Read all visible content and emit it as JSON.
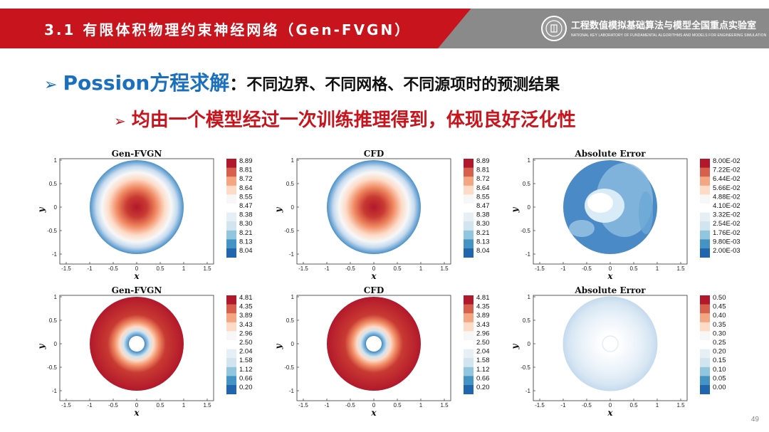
{
  "header": {
    "title": "3.1 有限体积物理约束神经网络（Gen-FVGN）",
    "lab_name_cn": "工程数值模拟基础算法与模型全国重点实验室",
    "lab_name_en": "NATIONAL KEY LABORATORY OF FUNDAMENTAL ALGORITHMS AND MODELS FOR ENGINEERING SIMULATION",
    "logo_icon": "lab-seal-icon"
  },
  "bullets": {
    "arrow": "➢",
    "b1_key": "Possion方程求解",
    "b1_colon": "：",
    "b1_rest": "不同边界、不同网格、不同源项时的预测结果",
    "b2_text": "均由一个模型经过一次训练推理得到，体现良好泛化性"
  },
  "plots": [
    {
      "title": "Gen-FVGN",
      "xlabel": "x",
      "ylabel": "y",
      "colorbar": [
        "8.89",
        "8.81",
        "8.72",
        "8.64",
        "8.55",
        "8.47",
        "8.38",
        "8.30",
        "8.21",
        "8.13",
        "8.04"
      ],
      "kind": "peak"
    },
    {
      "title": "CFD",
      "xlabel": "x",
      "ylabel": "y",
      "colorbar": [
        "8.89",
        "8.81",
        "8.72",
        "8.64",
        "8.55",
        "8.47",
        "8.38",
        "8.30",
        "8.21",
        "8.13",
        "8.04"
      ],
      "kind": "peak"
    },
    {
      "title": "Absolute Error",
      "xlabel": "x",
      "ylabel": "y",
      "colorbar": [
        "8.00E-02",
        "7.22E-02",
        "6.44E-02",
        "5.66E-02",
        "4.88E-02",
        "4.10E-02",
        "3.32E-02",
        "2.54E-02",
        "1.76E-02",
        "9.80E-03",
        "2.00E-03"
      ],
      "kind": "error1"
    },
    {
      "title": "Gen-FVGN",
      "xlabel": "x",
      "ylabel": "y",
      "colorbar": [
        "4.81",
        "4.35",
        "3.89",
        "3.43",
        "2.96",
        "2.50",
        "2.04",
        "1.58",
        "1.12",
        "0.66",
        "0.20"
      ],
      "kind": "annulus"
    },
    {
      "title": "CFD",
      "xlabel": "x",
      "ylabel": "y",
      "colorbar": [
        "4.81",
        "4.35",
        "3.89",
        "3.43",
        "2.96",
        "2.50",
        "2.04",
        "1.58",
        "1.12",
        "0.66",
        "0.20"
      ],
      "kind": "annulus"
    },
    {
      "title": "Absolute Error",
      "xlabel": "x",
      "ylabel": "y",
      "colorbar": [
        "0.50",
        "0.45",
        "0.40",
        "0.35",
        "0.30",
        "0.25",
        "0.20",
        "0.15",
        "0.10",
        "0.05",
        "0.00"
      ],
      "kind": "error2"
    }
  ],
  "x_ticks": [
    "-1.5",
    "-1",
    "-0.5",
    "0",
    "0.5",
    "1",
    "1.5"
  ],
  "y_ticks": [
    "1",
    "0.5",
    "0",
    "-0.5",
    "-1"
  ],
  "page_number": "49"
}
